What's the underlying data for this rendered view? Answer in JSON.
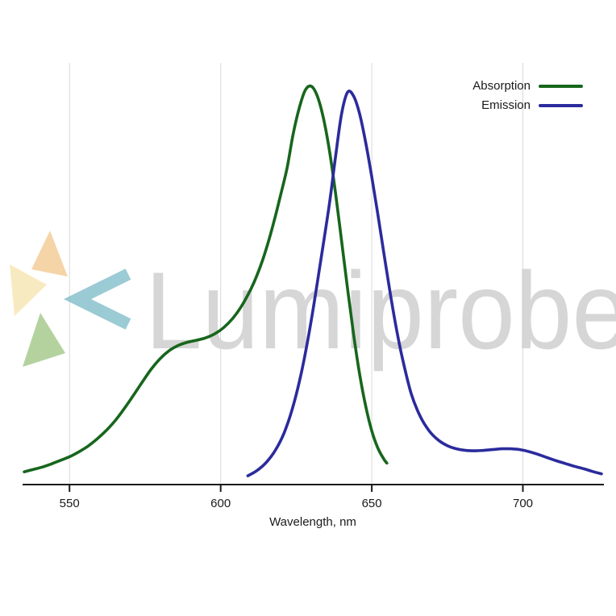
{
  "watermark": {
    "text": "Lumiprobe"
  },
  "legend": {
    "items": [
      {
        "label": "Absorption",
        "color": "#17661c"
      },
      {
        "label": "Emission",
        "color": "#2b2b9d"
      }
    ]
  },
  "chart_data": {
    "type": "line",
    "title": "",
    "xlabel": "Wavelength, nm",
    "ylabel": "",
    "xlim": [
      535,
      726
    ],
    "ylim": [
      0,
      1.02
    ],
    "x_ticks": [
      550,
      600,
      650,
      700
    ],
    "grid": "vertical-only",
    "legend_position": "top-right",
    "series": [
      {
        "name": "Absorption",
        "color": "#17661c",
        "x": [
          535,
          538,
          541,
          544,
          547,
          550,
          553,
          556,
          559,
          562,
          565,
          568,
          571,
          574,
          577,
          580,
          583,
          586,
          589,
          592,
          595,
          598,
          601,
          604,
          607,
          610,
          612,
          614,
          616,
          618,
          620,
          622,
          624,
          626,
          628,
          630,
          632,
          634,
          636,
          638,
          640,
          642,
          644,
          646,
          648,
          650,
          652,
          654,
          655
        ],
        "y": [
          0.03,
          0.036,
          0.042,
          0.05,
          0.059,
          0.068,
          0.08,
          0.094,
          0.112,
          0.133,
          0.158,
          0.188,
          0.221,
          0.255,
          0.288,
          0.315,
          0.335,
          0.348,
          0.356,
          0.361,
          0.367,
          0.377,
          0.393,
          0.416,
          0.448,
          0.49,
          0.524,
          0.565,
          0.614,
          0.67,
          0.731,
          0.795,
          0.88,
          0.945,
          0.99,
          1.0,
          0.975,
          0.92,
          0.838,
          0.732,
          0.612,
          0.49,
          0.375,
          0.275,
          0.195,
          0.133,
          0.09,
          0.062,
          0.052
        ]
      },
      {
        "name": "Emission",
        "color": "#2b2b9d",
        "x": [
          609,
          612,
          615,
          618,
          621,
          624,
          627,
          630,
          633,
          636,
          638,
          640,
          642,
          644,
          646,
          648,
          650,
          652,
          654,
          656,
          658,
          660,
          663,
          666,
          669,
          672,
          675,
          678,
          681,
          684,
          687,
          690,
          693,
          696,
          699,
          702,
          705,
          708,
          711,
          714,
          717,
          720,
          723,
          726
        ],
        "y": [
          0.02,
          0.033,
          0.053,
          0.083,
          0.128,
          0.196,
          0.29,
          0.412,
          0.556,
          0.705,
          0.822,
          0.93,
          0.985,
          0.975,
          0.93,
          0.858,
          0.772,
          0.678,
          0.58,
          0.484,
          0.396,
          0.32,
          0.228,
          0.17,
          0.133,
          0.11,
          0.096,
          0.088,
          0.084,
          0.083,
          0.084,
          0.086,
          0.088,
          0.088,
          0.086,
          0.081,
          0.074,
          0.066,
          0.058,
          0.051,
          0.044,
          0.038,
          0.031,
          0.025
        ]
      }
    ]
  }
}
